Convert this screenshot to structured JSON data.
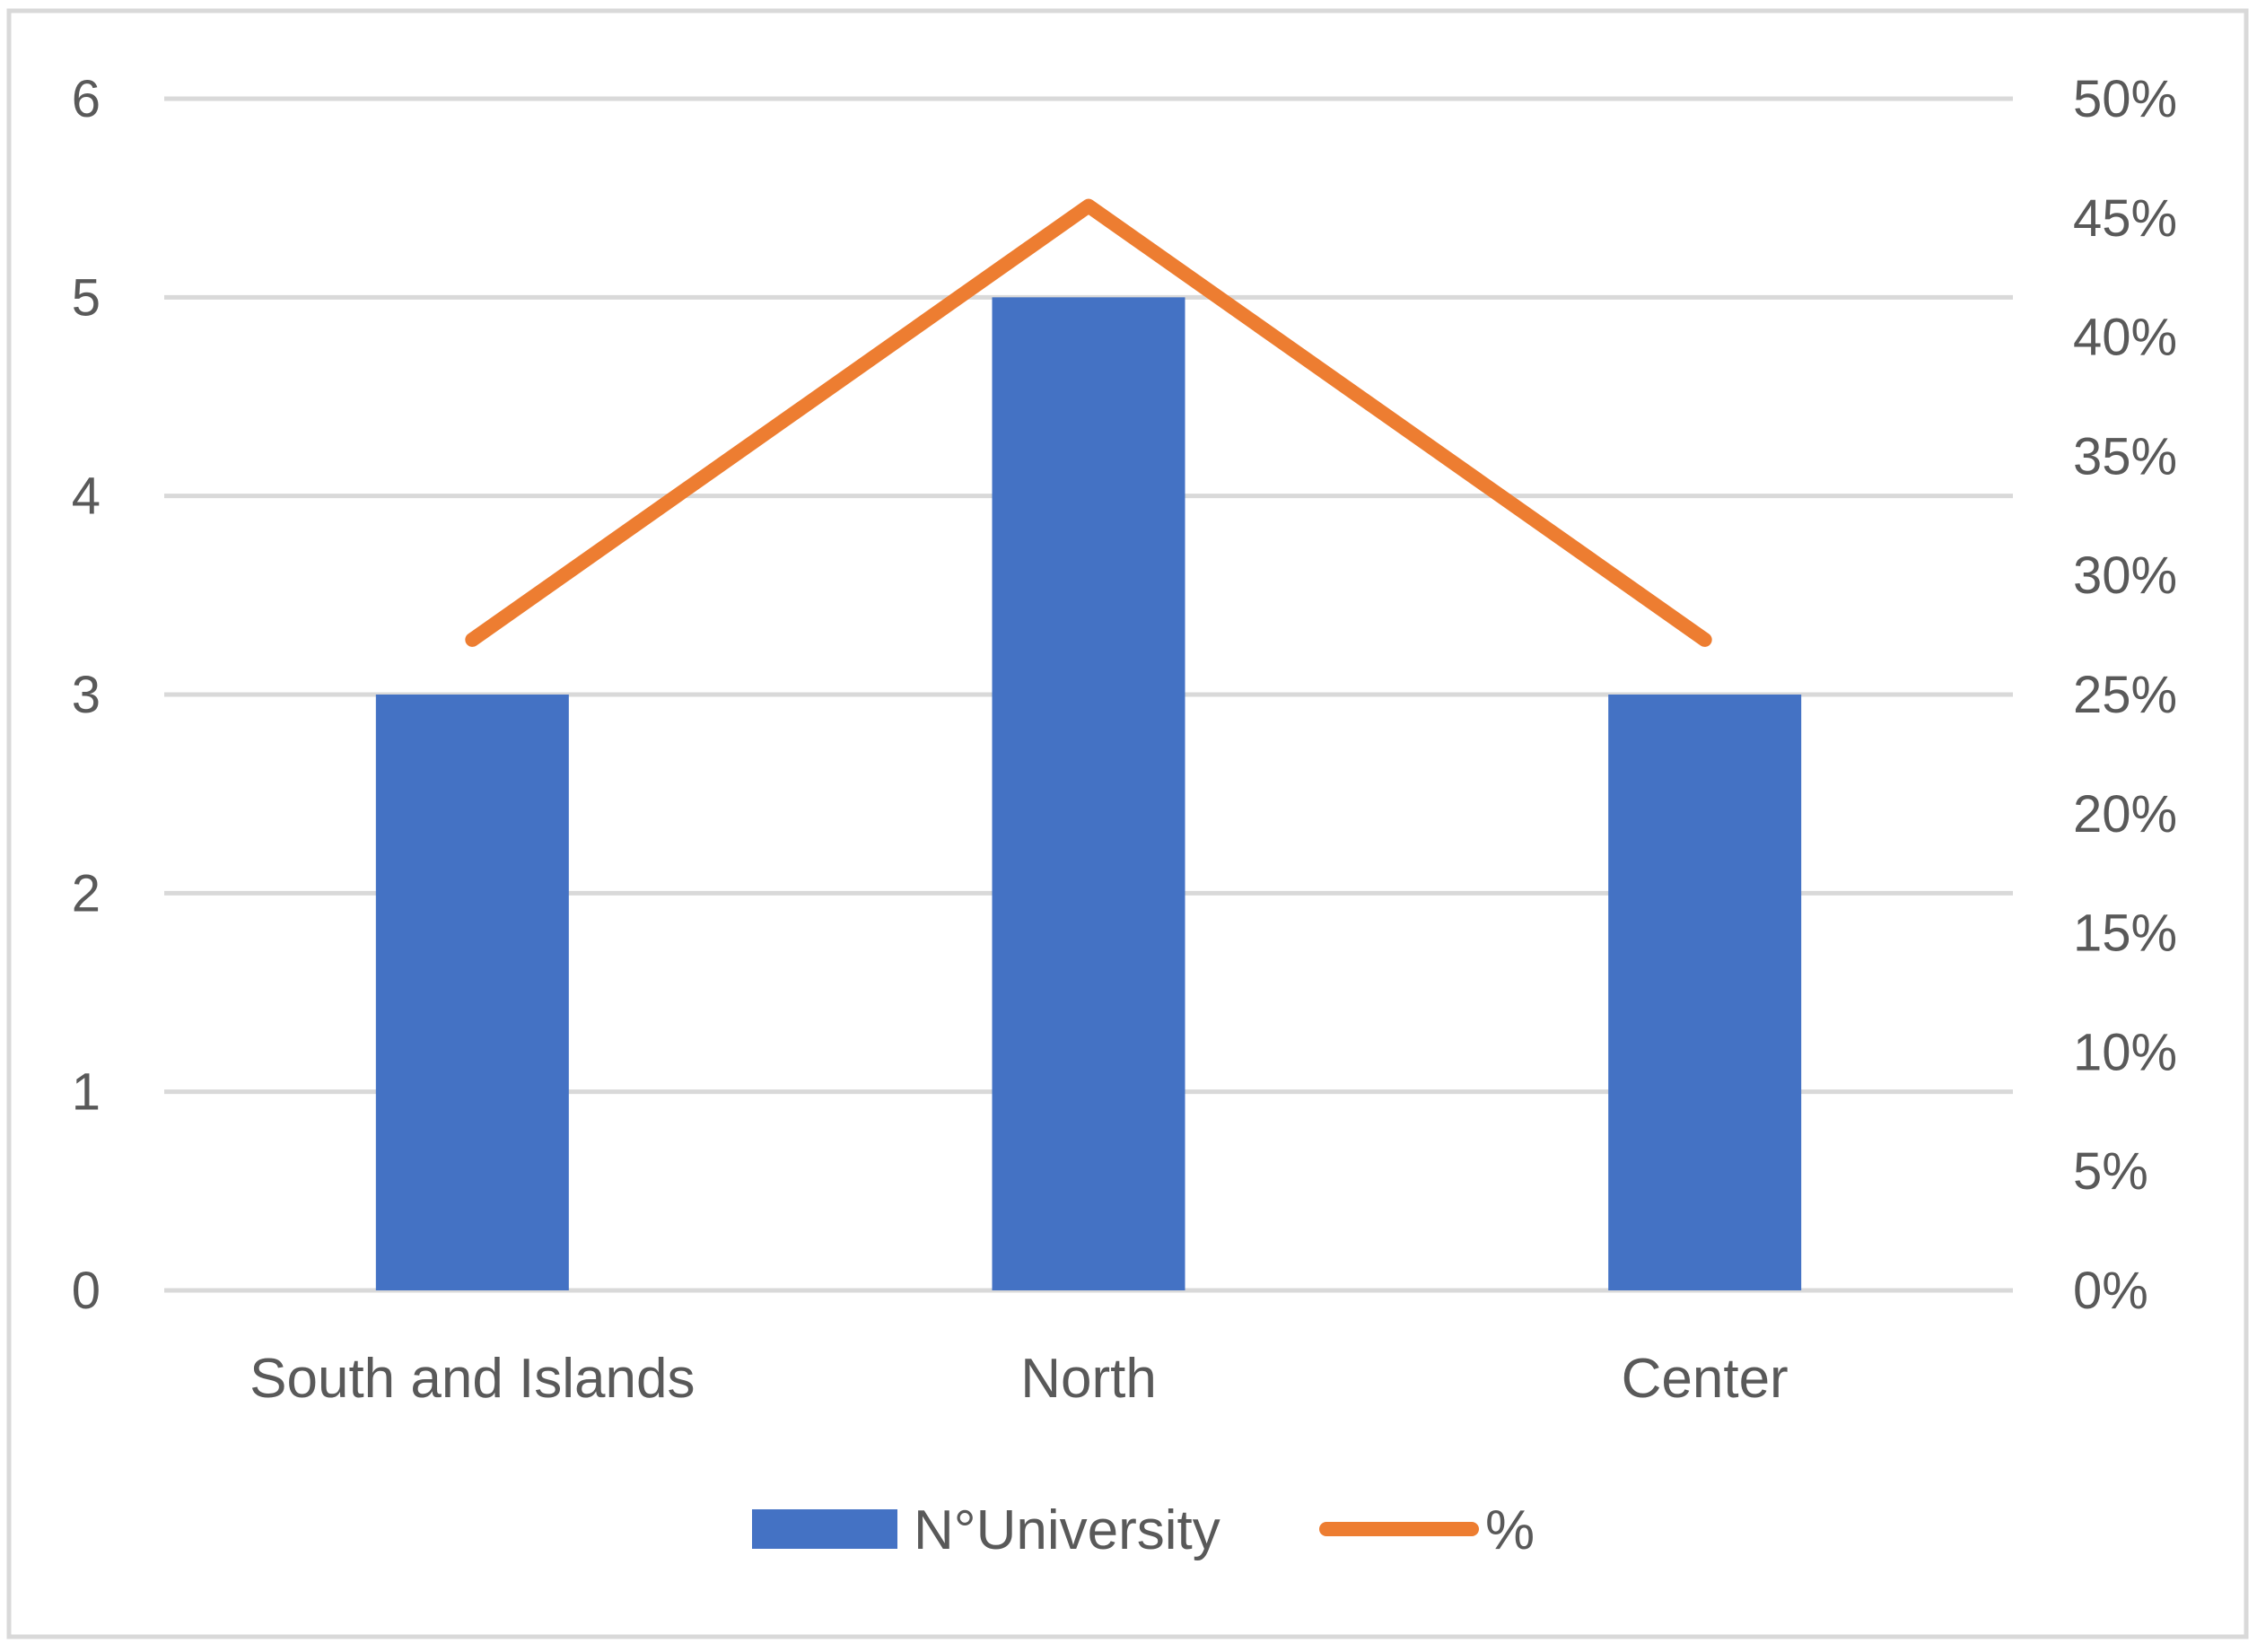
{
  "chart_data": {
    "type": "bar",
    "categories": [
      "South and Islands",
      "North",
      "Center"
    ],
    "series": [
      {
        "name": "N°University",
        "type": "bar",
        "axis": "left",
        "values": [
          3,
          5,
          3
        ],
        "color": "#4472C4"
      },
      {
        "name": "%",
        "type": "line",
        "axis": "right",
        "values": [
          0.273,
          0.455,
          0.273
        ],
        "color": "#ED7D31"
      }
    ],
    "y_left": {
      "range": [
        0,
        6
      ],
      "ticks": [
        "0",
        "1",
        "2",
        "3",
        "4",
        "5",
        "6"
      ]
    },
    "y_right": {
      "range": [
        0,
        0.5
      ],
      "ticks": [
        "0%",
        "5%",
        "10%",
        "15%",
        "20%",
        "25%",
        "30%",
        "35%",
        "40%",
        "45%",
        "50%"
      ]
    },
    "grid": true,
    "legend_position": "bottom",
    "colors": {
      "grid": "#D9D9D9",
      "text": "#595959",
      "border": "#D9D9D9"
    }
  }
}
